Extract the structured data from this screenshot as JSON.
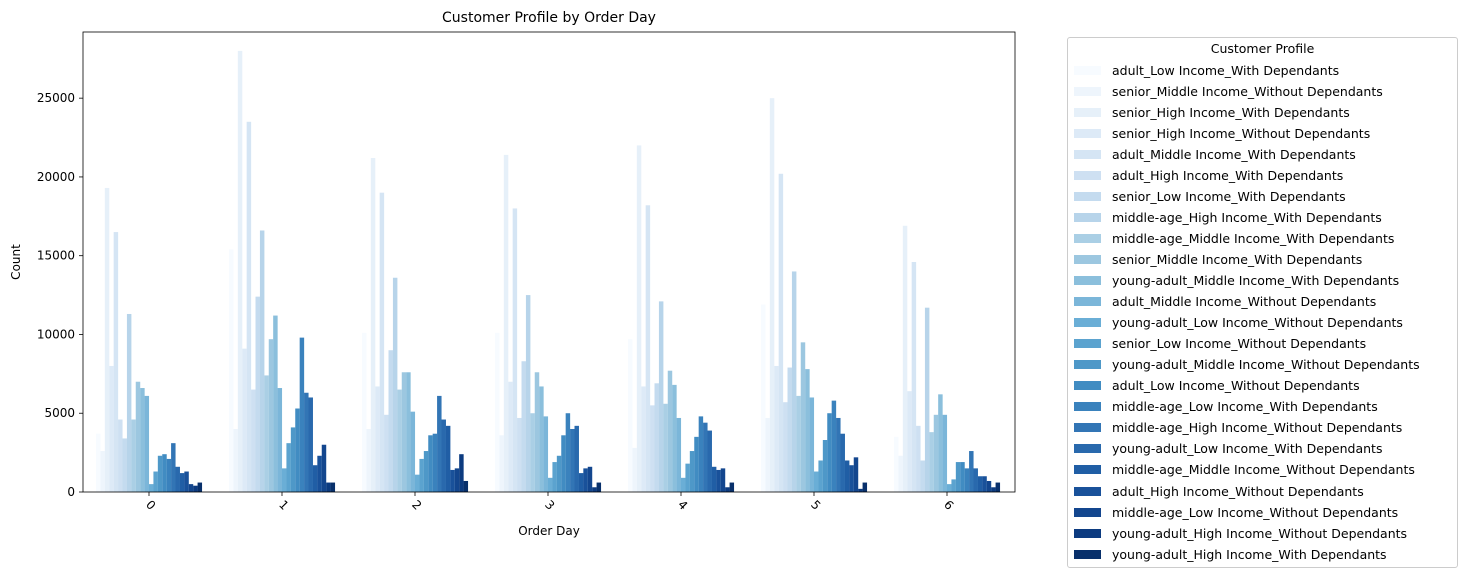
{
  "chart_data": {
    "type": "bar",
    "title": "Customer Profile by Order Day",
    "xlabel": "Order Day",
    "ylabel": "Count",
    "categories": [
      "0",
      "1",
      "2",
      "3",
      "4",
      "5",
      "6"
    ],
    "ylim": [
      0,
      29200
    ],
    "yticks": [
      0,
      5000,
      10000,
      15000,
      20000,
      25000
    ],
    "ytick_labels": [
      "0",
      "5000",
      "10000",
      "15000",
      "20000",
      "25000"
    ],
    "grid": false,
    "legend": {
      "title": "Customer Profile",
      "placement": "outside-right"
    },
    "series": [
      {
        "name": "adult_Low Income_With Dependants",
        "color": "#f7fbff",
        "values": [
          3700,
          15400,
          10100,
          10100,
          9700,
          11900,
          3500
        ]
      },
      {
        "name": "senior_Middle Income_Without Dependants",
        "color": "#eef5fc",
        "values": [
          2600,
          4000,
          4000,
          3600,
          2800,
          4700,
          2300
        ]
      },
      {
        "name": "senior_High Income_With Dependants",
        "color": "#e6f0f9",
        "values": [
          19300,
          28000,
          21200,
          21400,
          22000,
          25000,
          16900
        ]
      },
      {
        "name": "senior_High Income_Without Dependants",
        "color": "#ddeaf7",
        "values": [
          8000,
          9100,
          6700,
          7000,
          6700,
          8000,
          6400
        ]
      },
      {
        "name": "adult_Middle Income_With Dependants",
        "color": "#d5e5f4",
        "values": [
          16500,
          23500,
          19000,
          18000,
          18200,
          20200,
          14600
        ]
      },
      {
        "name": "adult_High Income_With Dependants",
        "color": "#cee0f2",
        "values": [
          4600,
          6500,
          4900,
          4700,
          5500,
          5700,
          4200
        ]
      },
      {
        "name": "senior_Low Income_With Dependants",
        "color": "#c4dbef",
        "values": [
          3400,
          12400,
          9000,
          8300,
          6900,
          7900,
          2000
        ]
      },
      {
        "name": "middle-age_High Income_With Dependants",
        "color": "#b7d4ea",
        "values": [
          11300,
          16600,
          13600,
          12500,
          12100,
          14000,
          11700
        ]
      },
      {
        "name": "middle-age_Middle Income_With Dependants",
        "color": "#aacfe5",
        "values": [
          4600,
          7400,
          6500,
          5000,
          5600,
          6100,
          3800
        ]
      },
      {
        "name": "senior_Middle Income_With Dependants",
        "color": "#9cc7e0",
        "values": [
          7000,
          9700,
          7600,
          7600,
          7700,
          9500,
          4900
        ]
      },
      {
        "name": "young-adult_Middle Income_With Dependants",
        "color": "#8bbfdc",
        "values": [
          6600,
          11200,
          7600,
          6700,
          6800,
          7800,
          6200
        ]
      },
      {
        "name": "adult_Middle Income_Without Dependants",
        "color": "#7bb6d9",
        "values": [
          6100,
          6600,
          5100,
          4800,
          4700,
          6000,
          4900
        ]
      },
      {
        "name": "young-adult_Low Income_Without Dependants",
        "color": "#6aaed6",
        "values": [
          500,
          1500,
          1100,
          900,
          900,
          1300,
          500
        ]
      },
      {
        "name": "senior_Low Income_Without Dependants",
        "color": "#5ba3cf",
        "values": [
          1300,
          3100,
          2100,
          1900,
          1800,
          2000,
          800
        ]
      },
      {
        "name": "young-adult_Middle Income_Without Dependants",
        "color": "#4e98c8",
        "values": [
          2300,
          4100,
          2600,
          2300,
          2600,
          3300,
          1900
        ]
      },
      {
        "name": "adult_Low Income_Without Dependants",
        "color": "#418cc2",
        "values": [
          2400,
          5300,
          3600,
          3600,
          3500,
          5000,
          1900
        ]
      },
      {
        "name": "middle-age_Low Income_With Dependants",
        "color": "#3a82bd",
        "values": [
          2100,
          9800,
          3700,
          5000,
          4800,
          5800,
          1500
        ]
      },
      {
        "name": "middle-age_High Income_Without Dependants",
        "color": "#3275b5",
        "values": [
          3100,
          6300,
          6100,
          4000,
          4400,
          4700,
          2600
        ]
      },
      {
        "name": "young-adult_Low Income_With Dependants",
        "color": "#2969ad",
        "values": [
          1600,
          6000,
          4600,
          4200,
          3900,
          3700,
          1500
        ]
      },
      {
        "name": "middle-age_Middle Income_Without Dependants",
        "color": "#205ea5",
        "values": [
          1200,
          1700,
          4200,
          1200,
          1600,
          2000,
          1000
        ]
      },
      {
        "name": "adult_High Income_Without Dependants",
        "color": "#19519a",
        "values": [
          1300,
          2300,
          1400,
          1500,
          1400,
          1700,
          1000
        ]
      },
      {
        "name": "middle-age_Low Income_Without Dependants",
        "color": "#13468e",
        "values": [
          500,
          3000,
          1500,
          1600,
          1500,
          2200,
          700
        ]
      },
      {
        "name": "young-adult_High Income_Without Dependants",
        "color": "#0c3b80",
        "values": [
          400,
          600,
          2400,
          300,
          300,
          200,
          300
        ]
      },
      {
        "name": "young-adult_High Income_With Dependants",
        "color": "#08306b",
        "values": [
          600,
          600,
          700,
          600,
          600,
          600,
          600
        ]
      }
    ]
  }
}
